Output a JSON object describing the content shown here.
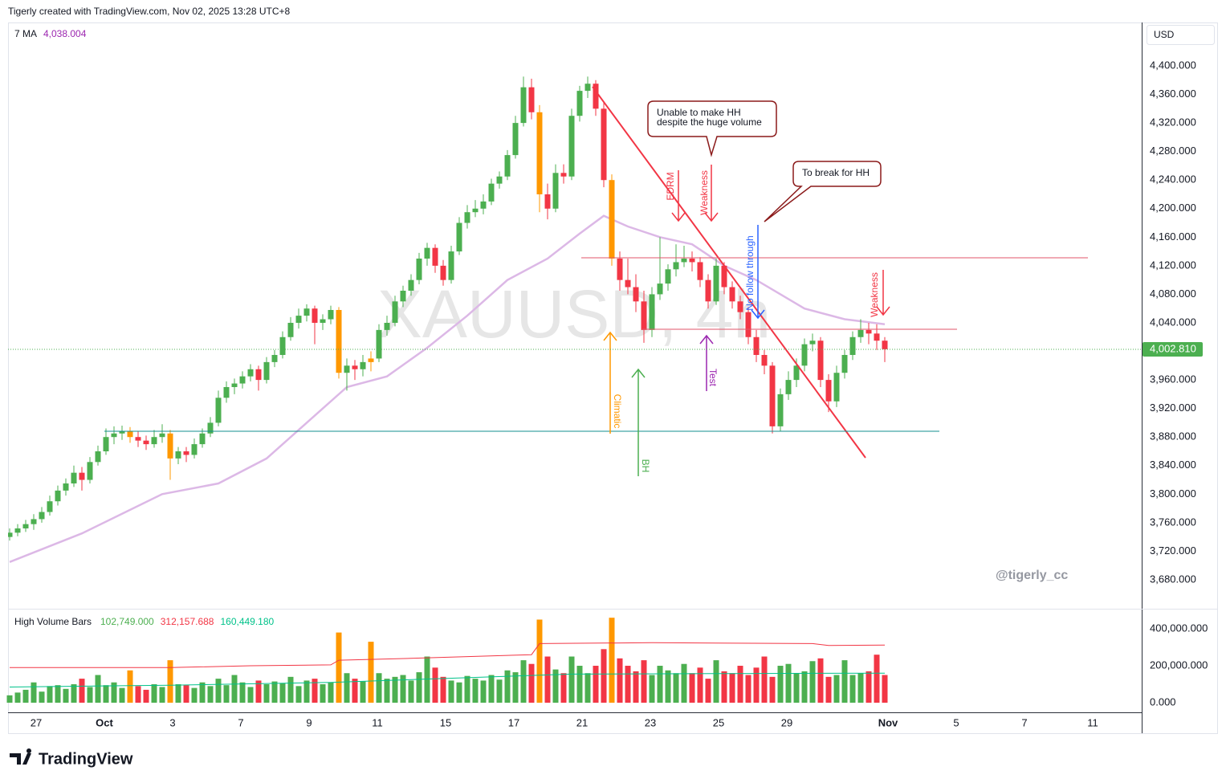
{
  "header": "Tigerly created with TradingView.com, Nov 02, 2025 13:28 UTC+8",
  "footer": "TradingView",
  "chart_data": {
    "type": "candlestick",
    "title": "XAUUSD, 4h",
    "currency": "USD",
    "credit": "@tigerly_cc",
    "up_color": "#4caf50",
    "down_color": "#f23645",
    "highlight_color": "#ff9800",
    "highlight": [
      15,
      20,
      41,
      45,
      66,
      75
    ],
    "candles": [
      [
        3740,
        3752,
        3735,
        3746
      ],
      [
        3746,
        3758,
        3741,
        3752
      ],
      [
        3752,
        3764,
        3747,
        3758
      ],
      [
        3758,
        3772,
        3750,
        3765
      ],
      [
        3765,
        3782,
        3760,
        3775
      ],
      [
        3775,
        3798,
        3770,
        3790
      ],
      [
        3790,
        3812,
        3784,
        3805
      ],
      [
        3805,
        3822,
        3798,
        3815
      ],
      [
        3815,
        3840,
        3810,
        3830
      ],
      [
        3830,
        3838,
        3805,
        3820
      ],
      [
        3820,
        3852,
        3815,
        3845
      ],
      [
        3845,
        3868,
        3840,
        3860
      ],
      [
        3860,
        3892,
        3855,
        3880
      ],
      [
        3880,
        3895,
        3870,
        3885
      ],
      [
        3885,
        3896,
        3876,
        3888
      ],
      [
        3888,
        3894,
        3872,
        3880
      ],
      [
        3880,
        3888,
        3866,
        3875
      ],
      [
        3875,
        3882,
        3862,
        3870
      ],
      [
        3870,
        3890,
        3865,
        3880
      ],
      [
        3880,
        3898,
        3872,
        3885
      ],
      [
        3885,
        3890,
        3820,
        3850
      ],
      [
        3850,
        3866,
        3842,
        3860
      ],
      [
        3860,
        3866,
        3845,
        3855
      ],
      [
        3855,
        3878,
        3850,
        3870
      ],
      [
        3870,
        3892,
        3865,
        3885
      ],
      [
        3885,
        3908,
        3880,
        3900
      ],
      [
        3900,
        3945,
        3895,
        3935
      ],
      [
        3935,
        3958,
        3928,
        3950
      ],
      [
        3950,
        3962,
        3940,
        3955
      ],
      [
        3955,
        3972,
        3948,
        3965
      ],
      [
        3965,
        3982,
        3958,
        3975
      ],
      [
        3975,
        3980,
        3945,
        3960
      ],
      [
        3960,
        3992,
        3955,
        3985
      ],
      [
        3985,
        4002,
        3978,
        3995
      ],
      [
        3995,
        4028,
        3990,
        4020
      ],
      [
        4020,
        4048,
        4015,
        4040
      ],
      [
        4040,
        4060,
        4032,
        4050
      ],
      [
        4050,
        4066,
        4042,
        4060
      ],
      [
        4060,
        4064,
        4010,
        4040
      ],
      [
        4040,
        4052,
        4030,
        4045
      ],
      [
        4045,
        4064,
        4038,
        4058
      ],
      [
        4058,
        4062,
        3962,
        3970
      ],
      [
        3970,
        3990,
        3945,
        3980
      ],
      [
        3980,
        3988,
        3960,
        3975
      ],
      [
        3975,
        3995,
        3965,
        3985
      ],
      [
        3985,
        4000,
        3972,
        3990
      ],
      [
        3990,
        4038,
        3985,
        4030
      ],
      [
        4030,
        4050,
        4022,
        4040
      ],
      [
        4040,
        4078,
        4035,
        4070
      ],
      [
        4070,
        4092,
        4062,
        4085
      ],
      [
        4085,
        4108,
        4078,
        4100
      ],
      [
        4100,
        4138,
        4094,
        4130
      ],
      [
        4130,
        4152,
        4120,
        4145
      ],
      [
        4145,
        4150,
        4110,
        4120
      ],
      [
        4120,
        4128,
        4092,
        4100
      ],
      [
        4100,
        4148,
        4095,
        4140
      ],
      [
        4140,
        4188,
        4135,
        4180
      ],
      [
        4180,
        4205,
        4172,
        4195
      ],
      [
        4195,
        4212,
        4188,
        4200
      ],
      [
        4200,
        4220,
        4192,
        4210
      ],
      [
        4210,
        4242,
        4205,
        4235
      ],
      [
        4235,
        4252,
        4228,
        4245
      ],
      [
        4245,
        4282,
        4240,
        4275
      ],
      [
        4275,
        4330,
        4270,
        4320
      ],
      [
        4320,
        4385,
        4315,
        4370
      ],
      [
        4370,
        4382,
        4325,
        4335
      ],
      [
        4335,
        4345,
        4195,
        4220
      ],
      [
        4220,
        4235,
        4185,
        4200
      ],
      [
        4200,
        4262,
        4195,
        4250
      ],
      [
        4250,
        4262,
        4235,
        4245
      ],
      [
        4245,
        4340,
        4240,
        4330
      ],
      [
        4330,
        4372,
        4322,
        4365
      ],
      [
        4365,
        4385,
        4355,
        4375
      ],
      [
        4375,
        4380,
        4330,
        4340
      ],
      [
        4340,
        4348,
        4230,
        4240
      ],
      [
        4240,
        4248,
        4120,
        4130
      ],
      [
        4130,
        4140,
        4085,
        4100
      ],
      [
        4100,
        4130,
        4080,
        4090
      ],
      [
        4090,
        4108,
        4055,
        4070
      ],
      [
        4070,
        4085,
        4012,
        4030
      ],
      [
        4030,
        4090,
        4020,
        4080
      ],
      [
        4080,
        4160,
        4072,
        4095
      ],
      [
        4095,
        4122,
        4085,
        4115
      ],
      [
        4115,
        4150,
        4105,
        4125
      ],
      [
        4125,
        4148,
        4118,
        4130
      ],
      [
        4130,
        4140,
        4112,
        4125
      ],
      [
        4125,
        4132,
        4090,
        4100
      ],
      [
        4100,
        4108,
        4060,
        4070
      ],
      [
        4070,
        4130,
        4065,
        4120
      ],
      [
        4120,
        4125,
        4080,
        4090
      ],
      [
        4090,
        4098,
        4060,
        4070
      ],
      [
        4070,
        4078,
        4045,
        4055
      ],
      [
        4055,
        4062,
        4010,
        4020
      ],
      [
        4020,
        4030,
        3985,
        3995
      ],
      [
        3995,
        4002,
        3968,
        3980
      ],
      [
        3980,
        3985,
        3885,
        3895
      ],
      [
        3895,
        3948,
        3888,
        3940
      ],
      [
        3940,
        3972,
        3932,
        3960
      ],
      [
        3960,
        3990,
        3950,
        3980
      ],
      [
        3980,
        4018,
        3972,
        4010
      ],
      [
        4010,
        4025,
        4000,
        4015
      ],
      [
        4015,
        4020,
        3950,
        3960
      ],
      [
        3960,
        3968,
        3915,
        3930
      ],
      [
        3930,
        3980,
        3922,
        3970
      ],
      [
        3970,
        4002,
        3962,
        3995
      ],
      [
        3995,
        4028,
        3988,
        4020
      ],
      [
        4020,
        4045,
        4012,
        4030
      ],
      [
        4030,
        4040,
        4010,
        4025
      ],
      [
        4025,
        4038,
        4002,
        4015
      ],
      [
        4015,
        4020,
        3985,
        4003
      ]
    ],
    "xlim": [
      -0.2,
      140.8
    ],
    "xticks": [
      {
        "value": 3.3,
        "label": "27"
      },
      {
        "value": 11.8,
        "label": "Oct"
      },
      {
        "value": 20.3,
        "label": "3"
      },
      {
        "value": 28.8,
        "label": "7"
      },
      {
        "value": 37.3,
        "label": "9"
      },
      {
        "value": 45.8,
        "label": "11"
      },
      {
        "value": 54.3,
        "label": "15"
      },
      {
        "value": 62.8,
        "label": "17"
      },
      {
        "value": 71.3,
        "label": "21"
      },
      {
        "value": 79.8,
        "label": "23"
      },
      {
        "value": 88.3,
        "label": "25"
      },
      {
        "value": 96.8,
        "label": "29"
      },
      {
        "value": 109.4,
        "label": "Nov"
      },
      {
        "value": 117.9,
        "label": "5"
      },
      {
        "value": 126.4,
        "label": "7"
      },
      {
        "value": 134.9,
        "label": "11"
      }
    ],
    "ylim": [
      3640.6,
      4460.75
    ],
    "yticks": [
      {
        "value": 3680,
        "label": "3,680.000"
      },
      {
        "value": 3720,
        "label": "3,720.000"
      },
      {
        "value": 3760,
        "label": "3,760.000"
      },
      {
        "value": 3800,
        "label": "3,800.000"
      },
      {
        "value": 3840,
        "label": "3,840.000"
      },
      {
        "value": 3880,
        "label": "3,880.000"
      },
      {
        "value": 3920,
        "label": "3,920.000"
      },
      {
        "value": 3960,
        "label": "3,960.000"
      },
      {
        "value": 4000,
        "label": "4,000.000"
      },
      {
        "value": 4040,
        "label": "4,040.000"
      },
      {
        "value": 4080,
        "label": "4,080.000"
      },
      {
        "value": 4120,
        "label": "4,120.000"
      },
      {
        "value": 4160,
        "label": "4,160.000"
      },
      {
        "value": 4200,
        "label": "4,200.000"
      },
      {
        "value": 4240,
        "label": "4,240.000"
      },
      {
        "value": 4280,
        "label": "4,280.000"
      },
      {
        "value": 4320,
        "label": "4,320.000"
      },
      {
        "value": 4360,
        "label": "4,360.000"
      },
      {
        "value": 4400,
        "label": "4,400.000"
      }
    ],
    "last_price": {
      "value": 4002.81,
      "label": "4,002.810"
    },
    "ma": {
      "name": "7 MA",
      "legend": {
        "value": 4038.004,
        "label": "4,038.004"
      },
      "color": "#dcb8e6",
      "legend_color": "#9c27b0",
      "x": [
        0,
        9,
        19,
        26,
        32,
        37,
        42,
        47,
        52,
        57,
        62,
        67,
        71,
        74,
        77,
        81,
        85,
        89,
        93,
        96,
        99,
        104,
        109
      ],
      "values": [
        3705,
        3745,
        3800,
        3815,
        3850,
        3900,
        3950,
        3965,
        4005,
        4050,
        4100,
        4130,
        4165,
        4190,
        4175,
        4160,
        4150,
        4120,
        4100,
        4080,
        4060,
        4045,
        4038
      ]
    },
    "volume": {
      "name": "High Volume Bars",
      "legend": [
        {
          "value": 102749,
          "label": "102,749.000",
          "color": "#4caf50"
        },
        {
          "value": 312157.688,
          "label": "312,157.688",
          "color": "#f23645"
        },
        {
          "value": 160449.18,
          "label": "160,449.180",
          "color": "#00c28a"
        }
      ],
      "ylim": [
        -52000,
        500000
      ],
      "yticks": [
        {
          "value": 0,
          "label": "0.000"
        },
        {
          "value": 200000,
          "label": "200,000.000"
        },
        {
          "value": 400000,
          "label": "400,000.000"
        }
      ],
      "values": [
        40000,
        55000,
        70000,
        110000,
        60000,
        90000,
        95000,
        75000,
        100000,
        130000,
        85000,
        150000,
        95000,
        110000,
        80000,
        175000,
        90000,
        70000,
        100000,
        85000,
        230000,
        100000,
        95000,
        80000,
        110000,
        90000,
        130000,
        95000,
        150000,
        110000,
        85000,
        120000,
        100000,
        115000,
        105000,
        140000,
        90000,
        120000,
        130000,
        100000,
        110000,
        380000,
        160000,
        130000,
        115000,
        330000,
        160000,
        130000,
        140000,
        150000,
        120000,
        165000,
        250000,
        190000,
        140000,
        120000,
        110000,
        145000,
        130000,
        120000,
        150000,
        125000,
        175000,
        165000,
        230000,
        210000,
        450000,
        250000,
        180000,
        160000,
        250000,
        200000,
        160000,
        200000,
        290000,
        460000,
        240000,
        200000,
        170000,
        230000,
        150000,
        200000,
        175000,
        160000,
        210000,
        160000,
        190000,
        130000,
        230000,
        170000,
        160000,
        200000,
        150000,
        190000,
        250000,
        140000,
        200000,
        210000,
        160000,
        170000,
        225000,
        240000,
        140000,
        150000,
        230000,
        150000,
        160000,
        170000,
        260000,
        150000
      ],
      "lines": [
        {
          "color": "#f23645",
          "x": [
            0,
            20,
            30,
            40,
            41,
            50,
            65,
            66,
            80,
            100,
            102,
            109
          ],
          "values": [
            190000,
            190000,
            200000,
            205000,
            230000,
            240000,
            260000,
            320000,
            325000,
            320000,
            310000,
            312000
          ]
        },
        {
          "color": "#00c28a",
          "x": [
            0,
            20,
            40,
            50,
            70,
            90,
            109
          ],
          "values": [
            85000,
            95000,
            110000,
            125000,
            155000,
            158000,
            160000
          ]
        }
      ]
    },
    "annotations": {
      "callout_1": [
        "Unable to make HH",
        "despite the huge volume"
      ],
      "callout_2": "To break for HH",
      "edrm": "EDRM",
      "weakness_1": "Weakness",
      "no_follow": "No follow through",
      "weakness_2": "Weakness",
      "test": "Test",
      "climatic": "Climatic",
      "bh": "BH"
    }
  }
}
